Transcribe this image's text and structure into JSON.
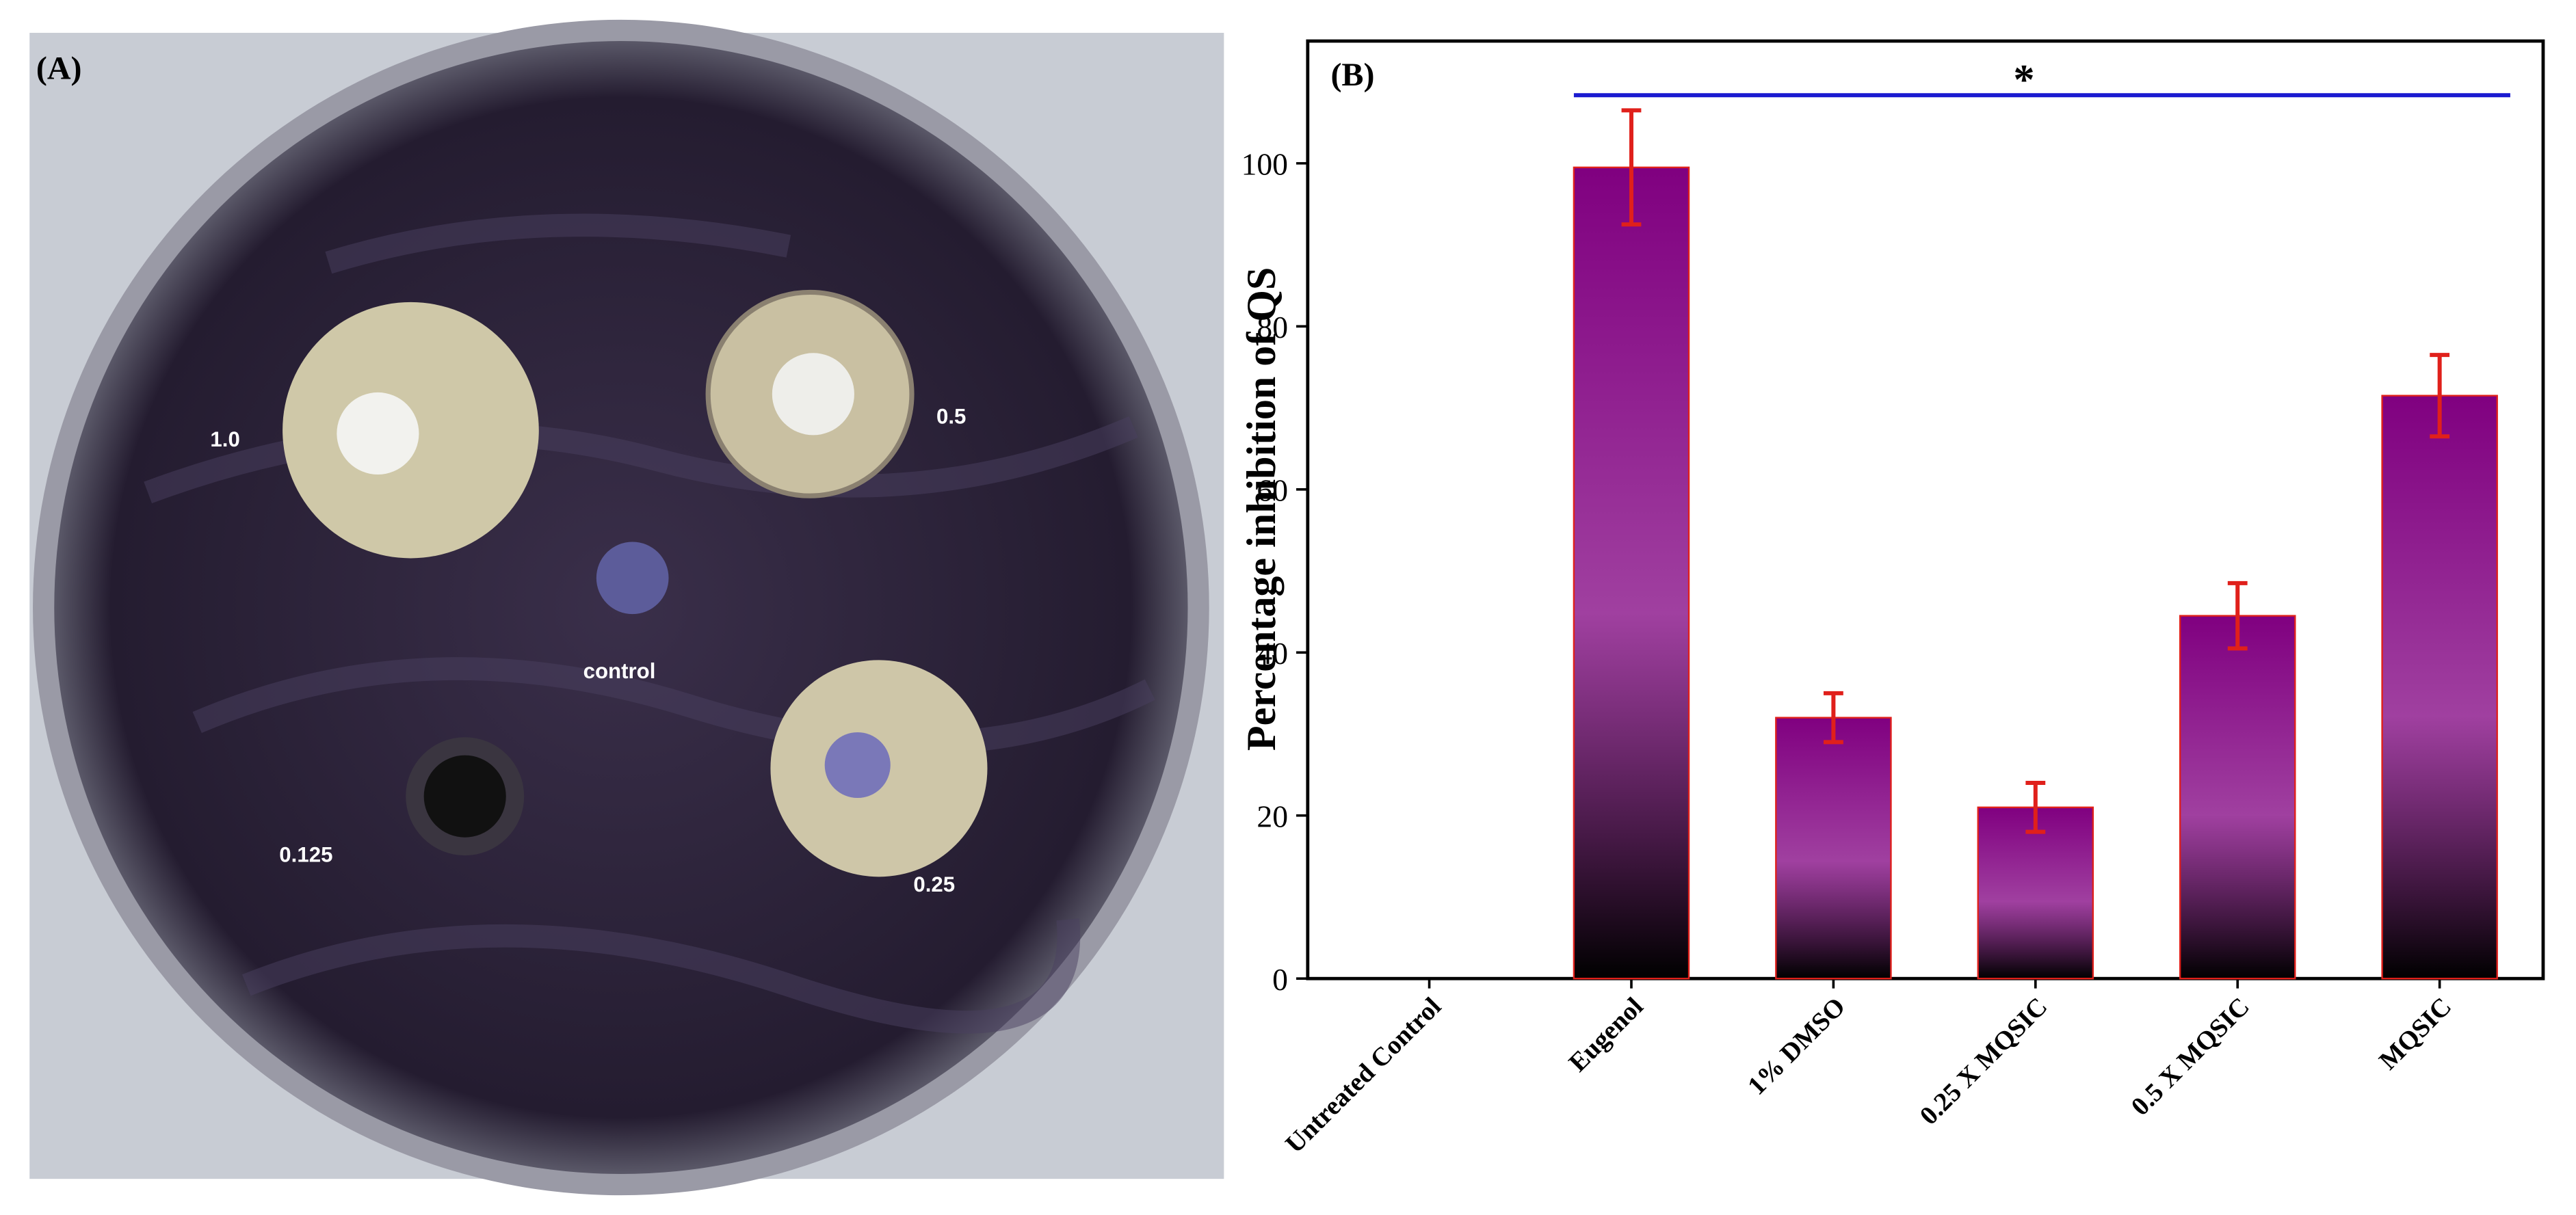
{
  "panel_a": {
    "label": "(A)",
    "disc_labels": [
      "1.0",
      "0.5",
      "control",
      "0.125",
      "0.25"
    ]
  },
  "chart_data": {
    "type": "bar",
    "panel_label": "(B)",
    "ylabel": "Percentage inhibition of QS",
    "categories": [
      "Untreated Control",
      "Eugenol",
      "1% DMSO",
      "0.25 X MQSIC",
      "0.5 X MQSIC",
      "MQSIC"
    ],
    "values": [
      0,
      99.5,
      32,
      21,
      44.5,
      71.5
    ],
    "errors": [
      0,
      7,
      3,
      3,
      4,
      5
    ],
    "color": "#800080",
    "error_color": "#e0201b",
    "significance_color": "#1a1ad0",
    "annotation": "*",
    "ylim": [
      0,
      115
    ],
    "yticks": [
      0,
      20,
      40,
      60,
      80,
      100
    ],
    "grid": false
  }
}
